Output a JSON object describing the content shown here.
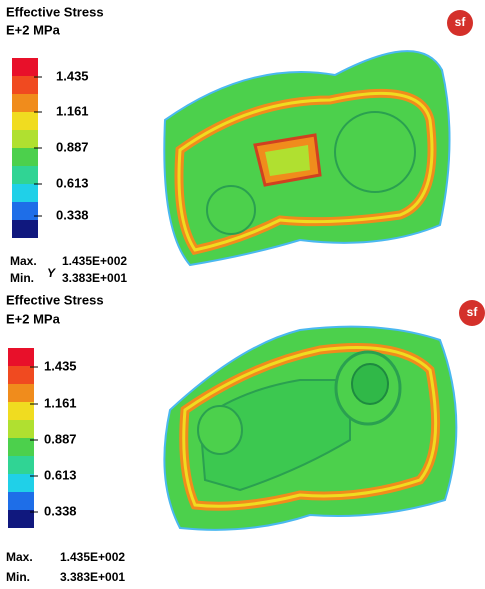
{
  "panels": [
    {
      "title": "Effective Stress",
      "unit": "E+2  MPa",
      "legend_labels": [
        "1.435",
        "1.161",
        "0.887",
        "0.613",
        "0.338"
      ],
      "max_label": "Max.",
      "max_value": "1.435E+002",
      "min_label": "Min.",
      "min_value": "3.383E+001",
      "axis_label": "Y",
      "logo": "sf"
    },
    {
      "title": "Effective Stress",
      "unit": "E+2  MPa",
      "legend_labels": [
        "1.435",
        "1.161",
        "0.887",
        "0.613",
        "0.338"
      ],
      "max_label": "Max.",
      "max_value": "1.435E+002",
      "min_label": "Min.",
      "min_value": "3.383E+001",
      "logo": "sf"
    }
  ]
}
